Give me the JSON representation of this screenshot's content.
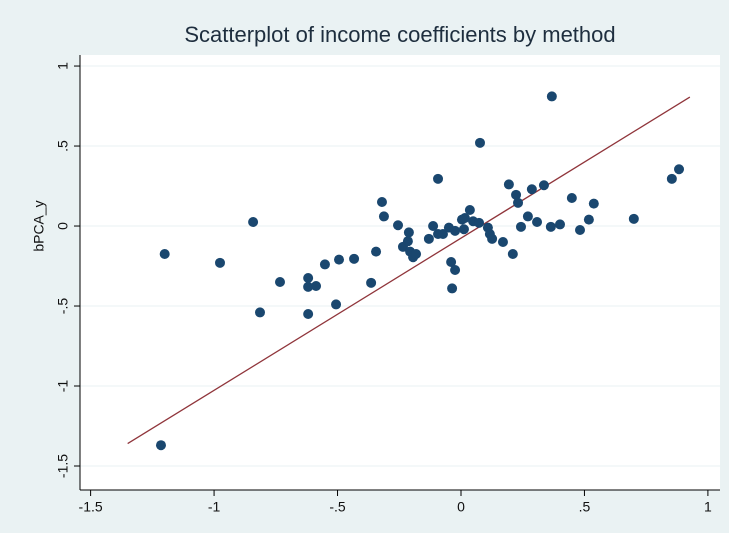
{
  "chart_data": {
    "type": "scatter",
    "title": "Scatterplot of income coefficients by method",
    "y_label": "bPCA_y",
    "color": "#1a476f",
    "x": [
      -1.215,
      -1.2,
      -0.976,
      -0.842,
      -0.814,
      -0.733,
      -0.619,
      -0.619,
      -0.587,
      -0.619,
      -0.551,
      -0.494,
      -0.506,
      -0.433,
      -0.364,
      -0.344,
      -0.32,
      -0.312,
      -0.255,
      -0.235,
      -0.215,
      -0.211,
      -0.206,
      -0.194,
      -0.182,
      -0.093,
      -0.13,
      -0.113,
      -0.093,
      -0.073,
      -0.049,
      -0.04,
      -0.036,
      -0.024,
      -0.024,
      0.004,
      0.012,
      0.016,
      0.036,
      0.049,
      0.077,
      0.073,
      0.109,
      0.117,
      0.126,
      0.17,
      0.194,
      0.21,
      0.223,
      0.231,
      0.243,
      0.271,
      0.287,
      0.308,
      0.336,
      0.364,
      0.368,
      0.401,
      0.449,
      0.482,
      0.518,
      0.538,
      0.7,
      0.854,
      0.883
    ],
    "values": [
      -1.37,
      -0.175,
      -0.23,
      0.025,
      -0.54,
      -0.35,
      -0.325,
      -0.38,
      -0.375,
      -0.55,
      -0.24,
      -0.21,
      -0.49,
      -0.205,
      -0.355,
      -0.16,
      0.15,
      0.06,
      0.005,
      -0.13,
      -0.095,
      -0.04,
      -0.16,
      -0.195,
      -0.175,
      0.295,
      -0.08,
      0.0,
      -0.05,
      -0.05,
      -0.01,
      -0.225,
      -0.39,
      -0.275,
      -0.03,
      0.04,
      -0.02,
      0.05,
      0.1,
      0.03,
      0.52,
      0.02,
      -0.01,
      -0.05,
      -0.08,
      -0.1,
      0.26,
      -0.175,
      0.195,
      0.145,
      -0.005,
      0.06,
      0.23,
      0.025,
      0.255,
      -0.005,
      0.81,
      0.01,
      0.175,
      -0.025,
      0.04,
      0.14,
      0.045,
      0.295,
      0.355
    ],
    "fit_line": {
      "x": [
        -1.35,
        0.927
      ],
      "y": [
        -1.36,
        0.806
      ],
      "color": "#90353b"
    },
    "xlim": [
      -1.543,
      1.049
    ],
    "ylim": [
      -1.65,
      1.069
    ],
    "xticks": [
      {
        "value": -1.5,
        "label": "-1.5"
      },
      {
        "value": -1,
        "label": "-1"
      },
      {
        "value": -0.5,
        "label": "-.5"
      },
      0,
      {
        "value": 0.5,
        "label": ".5"
      },
      1
    ],
    "yticks": [
      {
        "value": -1.5,
        "label": "-1.5"
      },
      {
        "value": -1,
        "label": "-1"
      },
      {
        "value": -0.5,
        "label": "-.5"
      },
      0,
      {
        "value": 0.5,
        "label": ".5"
      },
      1
    ],
    "grid": true
  }
}
